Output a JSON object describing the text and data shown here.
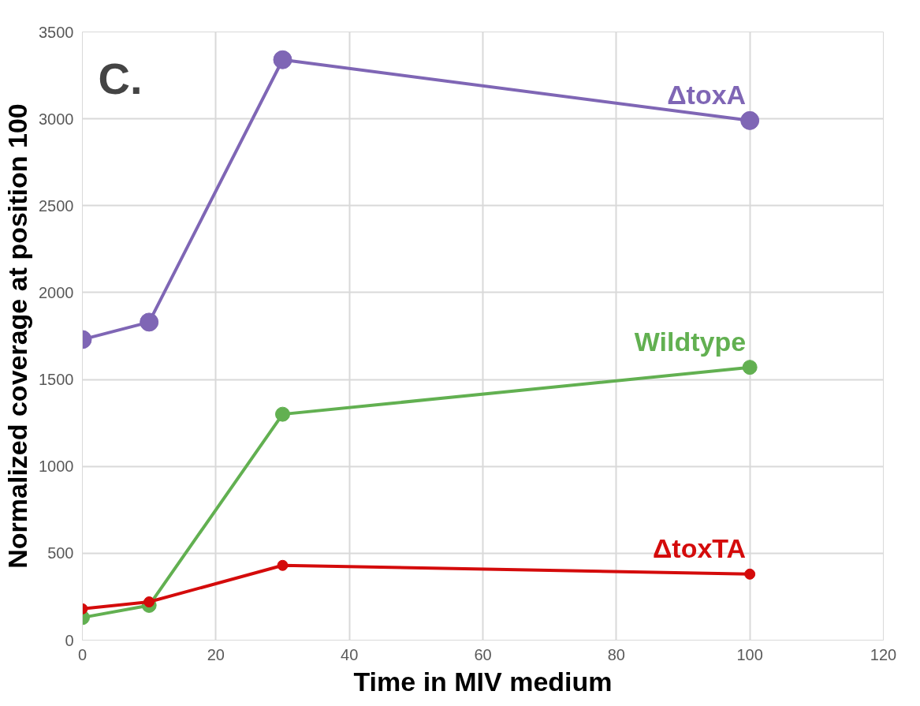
{
  "chart_data": {
    "type": "line",
    "xlabel": "Time in MIV medium",
    "ylabel": "Normalized coverage at position 100",
    "annotations": [
      "C."
    ],
    "x": [
      0,
      10,
      30,
      100
    ],
    "series": [
      {
        "name": "ΔtoxA",
        "color": "#7f66b5",
        "values": [
          1730,
          1830,
          3340,
          2990
        ]
      },
      {
        "name": "Wildtype",
        "color": "#62b051",
        "values": [
          130,
          200,
          1300,
          1570
        ]
      },
      {
        "name": "ΔtoxTA",
        "color": "#d40b0b",
        "values": [
          180,
          220,
          430,
          380
        ]
      }
    ],
    "xlim": [
      0,
      120
    ],
    "xticks": [
      0,
      20,
      40,
      60,
      80,
      100,
      120
    ],
    "ylim": [
      0,
      3500
    ],
    "yticks": [
      0,
      500,
      1000,
      1500,
      2000,
      2500,
      3000,
      3500
    ],
    "grid": true,
    "marker": "circle",
    "line_style": "solid"
  }
}
